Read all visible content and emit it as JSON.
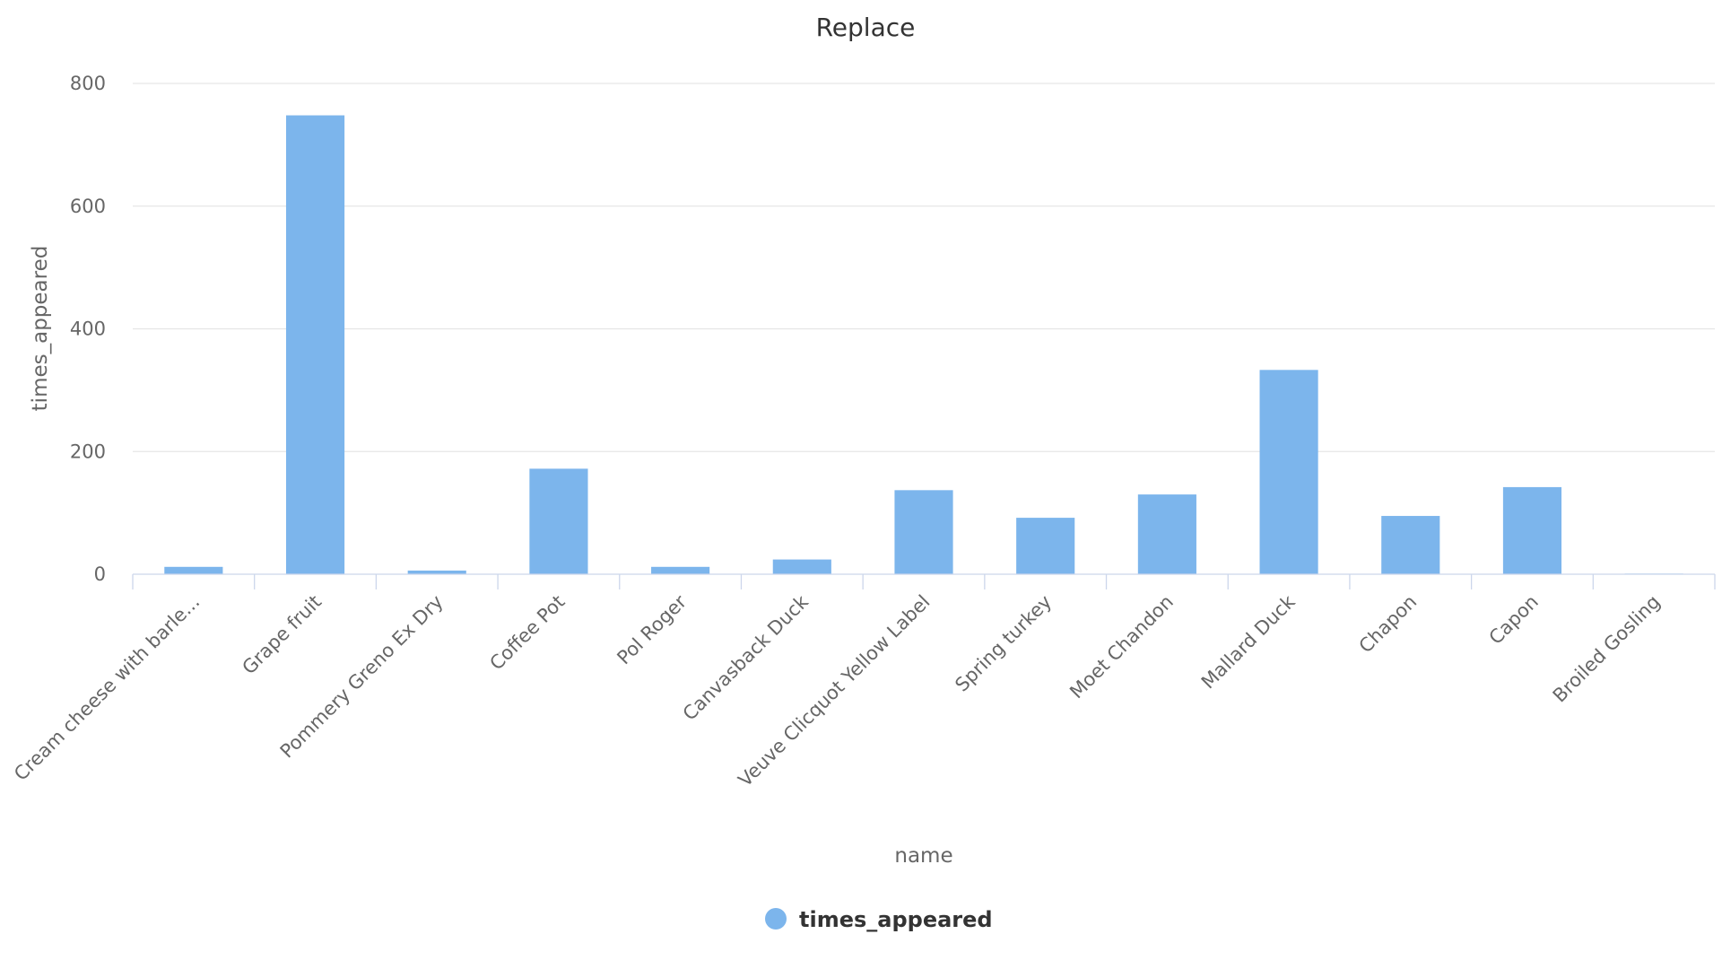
{
  "chart_data": {
    "type": "bar",
    "title": "Replace",
    "xlabel": "name",
    "ylabel": "times_appeared",
    "ylim": [
      0,
      800
    ],
    "yticks": [
      0,
      200,
      400,
      600,
      800
    ],
    "grid": true,
    "legend_position": "bottom-center",
    "categories": [
      "Cream cheese with barle...",
      "Grape fruit",
      "Pommery Greno Ex Dry",
      "Coffee Pot",
      "Pol Roger",
      "Canvasback Duck",
      "Veuve Clicquot Yellow Label",
      "Spring turkey",
      "Moet Chandon",
      "Mallard Duck",
      "Chapon",
      "Capon",
      "Broiled Gosling"
    ],
    "series": [
      {
        "name": "times_appeared",
        "color": "#7cb5ec",
        "values": [
          12,
          748,
          6,
          172,
          12,
          24,
          137,
          92,
          130,
          333,
          95,
          142,
          1
        ]
      }
    ]
  }
}
